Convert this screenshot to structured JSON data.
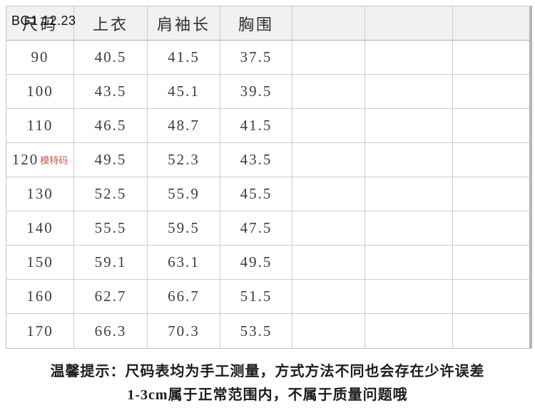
{
  "watermark": "BG1 12.23",
  "table": {
    "columns": [
      "尺码",
      "上衣",
      "肩袖长",
      "胸围",
      "",
      "",
      ""
    ],
    "rows": [
      {
        "size": "90",
        "top": "40.5",
        "shoulder_sleeve": "41.5",
        "chest": "37.5",
        "note": ""
      },
      {
        "size": "100",
        "top": "43.5",
        "shoulder_sleeve": "45.1",
        "chest": "39.5",
        "note": ""
      },
      {
        "size": "110",
        "top": "46.5",
        "shoulder_sleeve": "48.7",
        "chest": "41.5",
        "note": ""
      },
      {
        "size": "120",
        "top": "49.5",
        "shoulder_sleeve": "52.3",
        "chest": "43.5",
        "note": "模特码"
      },
      {
        "size": "130",
        "top": "52.5",
        "shoulder_sleeve": "55.9",
        "chest": "45.5",
        "note": ""
      },
      {
        "size": "140",
        "top": "55.5",
        "shoulder_sleeve": "59.5",
        "chest": "47.5",
        "note": ""
      },
      {
        "size": "150",
        "top": "59.1",
        "shoulder_sleeve": "63.1",
        "chest": "49.5",
        "note": ""
      },
      {
        "size": "160",
        "top": "62.7",
        "shoulder_sleeve": "66.7",
        "chest": "51.5",
        "note": ""
      },
      {
        "size": "170",
        "top": "66.3",
        "shoulder_sleeve": "70.3",
        "chest": "53.5",
        "note": ""
      }
    ]
  },
  "footer": {
    "line1": "温馨提示：尺码表均为手工测量，方式方法不同也会存在少许误差",
    "line2": "1-3cm属于正常范围内，不属于质量问题哦"
  },
  "colors": {
    "note_red": "#cf5050",
    "header_bg": "#f1f1f1",
    "grid_line": "#cccccc",
    "right_border": "#b5b5b5",
    "text": "#3d3d3d"
  }
}
